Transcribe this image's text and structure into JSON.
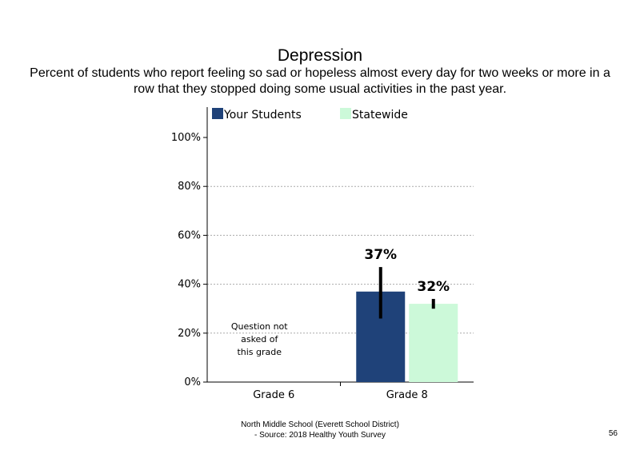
{
  "slide": {
    "footer_line1": "North Middle School (Everett School District)",
    "footer_line2": "- Source: 2018 Healthy Youth Survey",
    "page_number": "56"
  },
  "chart_data": {
    "type": "bar",
    "title": "Depression",
    "subtitle": "Percent of students who report feeling so sad or hopeless almost every day for two weeks or more in a row that they stopped doing some usual activities in the past year.",
    "categories": [
      "Grade 6",
      "Grade 8"
    ],
    "series": [
      {
        "name": "Your Students",
        "color": "#1f4279",
        "values": [
          null,
          37
        ],
        "error": [
          null,
          [
            26,
            47
          ]
        ],
        "labels": [
          "",
          "37%"
        ]
      },
      {
        "name": "Statewide",
        "color": "#ccf9d9",
        "values": [
          null,
          32
        ],
        "error": [
          null,
          [
            30,
            34
          ]
        ],
        "labels": [
          "",
          "32%"
        ]
      }
    ],
    "ylim": [
      0,
      100
    ],
    "yticks": [
      "0%",
      "20%",
      "40%",
      "60%",
      "80%",
      "100%"
    ],
    "grid": true,
    "legend": "top",
    "annotations": [
      "Question not",
      "asked of",
      "this grade"
    ]
  }
}
